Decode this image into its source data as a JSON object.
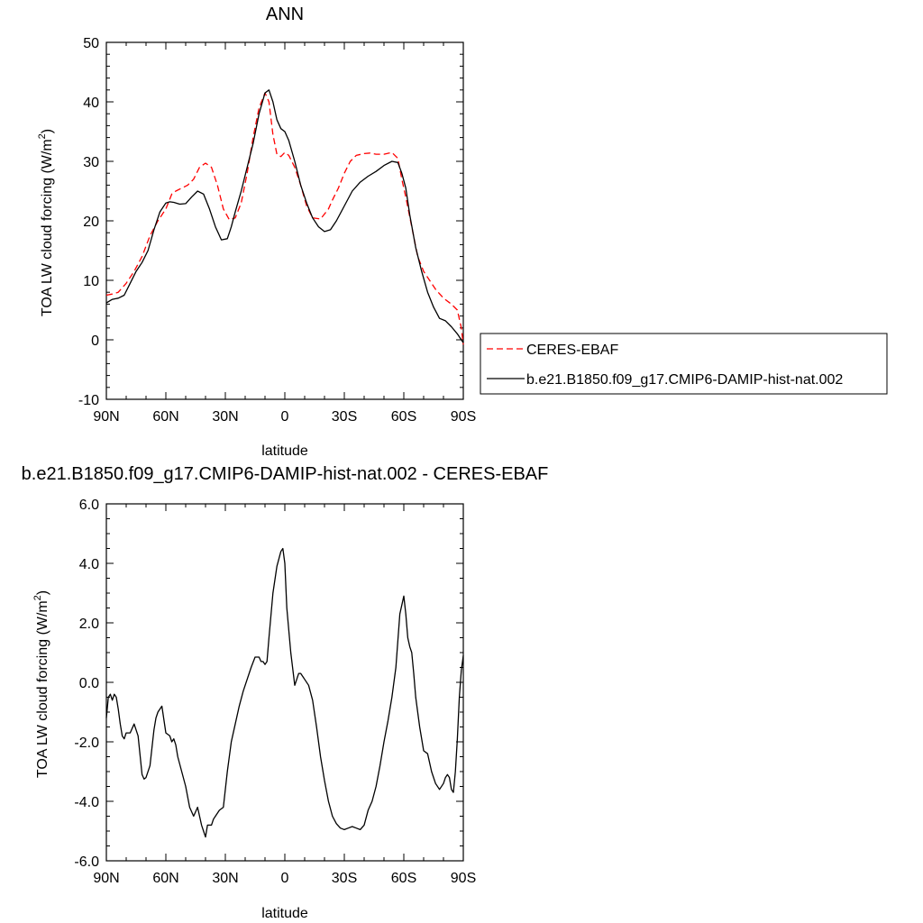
{
  "chart_data": [
    {
      "type": "line",
      "title": "ANN",
      "xlabel": "latitude",
      "ylabel_main": "TOA LW cloud forcing (W/m",
      "ylabel_sup": "2",
      "ylabel_end": ")",
      "xlim": [
        90,
        -90
      ],
      "ylim": [
        -10,
        50
      ],
      "x_ticks": [
        90,
        60,
        30,
        0,
        -30,
        -60,
        -90
      ],
      "x_tick_labels": [
        "90N",
        "60N",
        "30N",
        "0",
        "30S",
        "60S",
        "90S"
      ],
      "y_ticks": [
        -10,
        0,
        10,
        20,
        30,
        40,
        50
      ],
      "y_tick_labels": [
        "-10",
        "0",
        "10",
        "20",
        "30",
        "40",
        "50"
      ],
      "grid": false,
      "legend_position": "right",
      "series": [
        {
          "name": "CERES-EBAF",
          "color": "#ff0000",
          "dash": "dashed",
          "x": [
            90,
            87,
            84,
            80,
            76,
            72,
            68,
            64,
            60,
            57,
            55,
            52,
            49,
            46,
            43,
            40,
            37,
            34,
            31,
            28,
            25,
            22,
            19,
            16,
            13,
            10,
            8,
            6,
            4,
            2,
            0,
            -2,
            -5,
            -8,
            -11,
            -14,
            -18,
            -22,
            -24,
            -27,
            -30,
            -33,
            -36,
            -40,
            -43,
            -46,
            -50,
            -54,
            -57,
            -59,
            -61,
            -64,
            -67,
            -70,
            -73,
            -76,
            -80,
            -84,
            -87,
            -89,
            -90
          ],
          "y": [
            7.5,
            7.7,
            8.0,
            9.5,
            11.5,
            14.0,
            17.5,
            20.0,
            22.0,
            24.5,
            25.0,
            25.5,
            26.0,
            27.0,
            29.0,
            29.7,
            29.0,
            26.0,
            22.0,
            20.2,
            20.5,
            23.0,
            28.0,
            34.0,
            39.0,
            41.5,
            40.0,
            34.5,
            31.2,
            30.8,
            31.5,
            31.0,
            29.0,
            26.0,
            22.5,
            20.5,
            20.3,
            22.0,
            23.5,
            25.5,
            28.0,
            30.0,
            31.0,
            31.3,
            31.4,
            31.2,
            31.2,
            31.5,
            30.5,
            27.0,
            24.0,
            19.0,
            14.0,
            11.5,
            10.0,
            8.5,
            7.0,
            6.0,
            5.0,
            2.0,
            -0.8
          ]
        },
        {
          "name": "b.e21.B1850.f09_g17.CMIP6-DAMIP-hist-nat.002",
          "color": "#000000",
          "dash": "solid",
          "x": [
            90,
            87,
            84,
            81,
            78,
            75,
            72,
            69,
            66,
            63,
            60,
            58,
            56,
            53,
            50,
            47,
            44,
            41,
            38,
            35,
            32,
            29,
            27,
            25,
            22,
            19,
            16,
            13,
            10,
            8,
            6,
            4,
            2,
            0,
            -2,
            -5,
            -8,
            -11,
            -14,
            -17,
            -20,
            -23,
            -26,
            -30,
            -34,
            -38,
            -42,
            -46,
            -50,
            -54,
            -57,
            -59,
            -61,
            -63,
            -66,
            -69,
            -72,
            -75,
            -78,
            -81,
            -84,
            -87,
            -89,
            -90
          ],
          "y": [
            6.2,
            6.8,
            7.0,
            7.5,
            9.5,
            11.5,
            13.0,
            15.0,
            18.5,
            21.5,
            23.0,
            23.2,
            23.1,
            22.8,
            22.9,
            24.0,
            25.0,
            24.5,
            22.0,
            19.0,
            16.8,
            17.0,
            19.0,
            21.5,
            25.0,
            29.0,
            33.0,
            38.0,
            41.5,
            42.0,
            40.0,
            37.0,
            35.5,
            35.0,
            33.5,
            30.0,
            26.0,
            23.0,
            20.5,
            19.0,
            18.2,
            18.5,
            20.0,
            22.5,
            25.0,
            26.5,
            27.5,
            28.3,
            29.3,
            30.0,
            29.8,
            28.0,
            25.5,
            21.0,
            15.5,
            11.5,
            8.0,
            5.5,
            3.6,
            3.2,
            2.2,
            1.0,
            0.0,
            -0.5
          ]
        }
      ]
    },
    {
      "type": "line",
      "title": "b.e21.B1850.f09_g17.CMIP6-DAMIP-hist-nat.002 - CERES-EBAF",
      "xlabel": "latitude",
      "ylabel_main": "TOA LW cloud forcing (W/m",
      "ylabel_sup": "2",
      "ylabel_end": ")",
      "xlim": [
        90,
        -90
      ],
      "ylim": [
        -6,
        6
      ],
      "x_ticks": [
        90,
        60,
        30,
        0,
        -30,
        -60,
        -90
      ],
      "x_tick_labels": [
        "90N",
        "60N",
        "30N",
        "0",
        "30S",
        "60S",
        "90S"
      ],
      "y_ticks": [
        -6,
        -4,
        -2,
        0,
        2,
        4,
        6
      ],
      "y_tick_labels": [
        "-6.0",
        "-4.0",
        "-2.0",
        "0.0",
        "2.0",
        "4.0",
        "6.0"
      ],
      "grid": false,
      "series": [
        {
          "color": "#000000",
          "dash": "solid",
          "x": [
            90,
            89,
            88,
            87,
            86,
            85,
            84,
            83,
            82,
            81,
            80,
            79,
            78,
            76,
            74,
            72,
            71,
            70,
            68,
            67,
            66,
            65,
            64,
            62,
            60,
            58,
            57,
            56,
            55,
            54,
            52,
            50,
            48,
            46,
            44,
            42,
            41,
            40,
            39,
            37,
            36,
            35,
            33,
            31,
            29,
            27,
            25,
            23,
            21,
            19,
            17,
            15,
            13,
            12,
            11,
            10,
            9,
            8,
            6,
            4,
            2,
            1,
            0,
            -1,
            -3,
            -5,
            -6,
            -7,
            -8,
            -9,
            -10,
            -12,
            -14,
            -16,
            -18,
            -20,
            -22,
            -24,
            -26,
            -28,
            -30,
            -32,
            -34,
            -36,
            -38,
            -40,
            -42,
            -44,
            -46,
            -48,
            -50,
            -52,
            -54,
            -56,
            -58,
            -60,
            -61,
            -62,
            -63,
            -64,
            -65,
            -66,
            -68,
            -70,
            -72,
            -74,
            -76,
            -78,
            -80,
            -81,
            -82,
            -83,
            -84,
            -85,
            -86,
            -87,
            -88,
            -89,
            -90
          ],
          "y": [
            -1.2,
            -0.5,
            -0.4,
            -0.6,
            -0.4,
            -0.5,
            -0.9,
            -1.4,
            -1.8,
            -1.9,
            -1.7,
            -1.7,
            -1.7,
            -1.4,
            -1.8,
            -3.1,
            -3.25,
            -3.2,
            -2.8,
            -2.2,
            -1.6,
            -1.2,
            -1.0,
            -0.8,
            -1.7,
            -1.8,
            -2.0,
            -1.9,
            -2.1,
            -2.5,
            -3.0,
            -3.5,
            -4.2,
            -4.5,
            -4.2,
            -4.8,
            -5.0,
            -5.2,
            -4.8,
            -4.8,
            -4.6,
            -4.5,
            -4.3,
            -4.2,
            -3.0,
            -2.0,
            -1.4,
            -0.8,
            -0.3,
            0.1,
            0.5,
            0.85,
            0.85,
            0.7,
            0.7,
            0.6,
            0.7,
            1.5,
            3.0,
            3.9,
            4.4,
            4.5,
            4.0,
            2.5,
            1.0,
            -0.1,
            0.1,
            0.3,
            0.3,
            0.2,
            0.1,
            -0.1,
            -0.6,
            -1.5,
            -2.5,
            -3.3,
            -4.0,
            -4.5,
            -4.75,
            -4.9,
            -4.95,
            -4.9,
            -4.85,
            -4.9,
            -4.95,
            -4.8,
            -4.3,
            -4.0,
            -3.5,
            -2.8,
            -2.0,
            -1.3,
            -0.5,
            0.5,
            2.3,
            2.9,
            2.3,
            1.5,
            1.2,
            1.0,
            0.3,
            -0.5,
            -1.5,
            -2.3,
            -2.4,
            -3.0,
            -3.4,
            -3.6,
            -3.4,
            -3.2,
            -3.1,
            -3.2,
            -3.6,
            -3.7,
            -3.0,
            -1.9,
            -0.5,
            0.4,
            0.9
          ]
        }
      ]
    }
  ]
}
